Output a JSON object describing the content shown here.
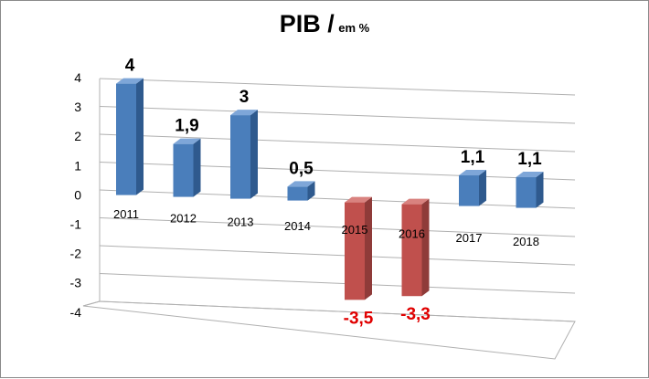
{
  "chart_data": {
    "type": "bar",
    "title": "PIB /",
    "title_unit": "em %",
    "categories": [
      "2011",
      "2012",
      "2013",
      "2014",
      "2015",
      "2016",
      "2017",
      "2018"
    ],
    "values": [
      4,
      1.9,
      3,
      0.5,
      -3.5,
      -3.3,
      1.1,
      1.1
    ],
    "data_labels": [
      "4",
      "1,9",
      "3",
      "0,5",
      "-3,5",
      "-3,3",
      "1,1",
      "1,1"
    ],
    "ylim": [
      -4,
      4
    ],
    "yticks": [
      "4",
      "3",
      "2",
      "1",
      "0",
      "-1",
      "-2",
      "-3",
      "-4"
    ],
    "grid": true,
    "legend": "none",
    "colors": {
      "positive": "#4a7ebb",
      "negative": "#c0504d",
      "negative_label": "#e00000",
      "grid": "#b0b0b0"
    }
  }
}
